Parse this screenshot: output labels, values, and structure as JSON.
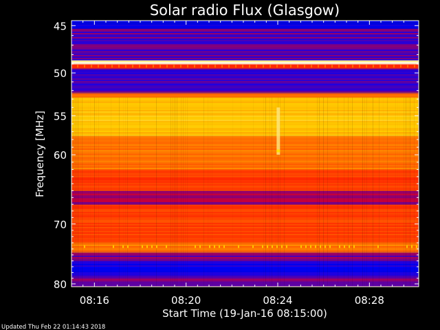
{
  "chart_data": {
    "type": "heatmap",
    "title": "Solar radio Flux (Glasgow)",
    "xlabel": "Start Time (19-Jan-16 08:15:00)",
    "ylabel": "Frequency [MHz]",
    "x_ticks": [
      "08:16",
      "08:20",
      "08:24",
      "08:28"
    ],
    "x_tick_minutes": [
      16,
      20,
      24,
      28
    ],
    "xlim_minutes": [
      15.0,
      30.15
    ],
    "y_ticks": [
      45,
      50,
      55,
      60,
      70,
      80
    ],
    "ylim": [
      44.5,
      80.5
    ],
    "y_scale": "log",
    "colormap": [
      "#00008b",
      "#0000ff",
      "#ff0000",
      "#ff6a00",
      "#ffd000",
      "#ffffff"
    ],
    "bands": [
      {
        "f0": 44.5,
        "f1": 45.3,
        "level": 0.15
      },
      {
        "f0": 45.3,
        "f1": 48.6,
        "level": 0.27
      },
      {
        "f0": 48.6,
        "f1": 49.0,
        "level": 0.95
      },
      {
        "f0": 49.0,
        "f1": 49.5,
        "level": 0.45
      },
      {
        "f0": 49.5,
        "f1": 52.2,
        "level": 0.25
      },
      {
        "f0": 52.2,
        "f1": 52.8,
        "level": 0.6
      },
      {
        "f0": 52.8,
        "f1": 57.5,
        "level": 0.78
      },
      {
        "f0": 57.5,
        "f1": 62.0,
        "level": 0.62
      },
      {
        "f0": 62.0,
        "f1": 65.0,
        "level": 0.5
      },
      {
        "f0": 65.0,
        "f1": 67.0,
        "level": 0.32
      },
      {
        "f0": 67.0,
        "f1": 73.0,
        "level": 0.52
      },
      {
        "f0": 73.0,
        "f1": 74.5,
        "level": 0.62
      },
      {
        "f0": 74.5,
        "f1": 76.0,
        "level": 0.3
      },
      {
        "f0": 76.0,
        "f1": 78.5,
        "level": 0.2
      },
      {
        "f0": 78.5,
        "f1": 80.5,
        "level": 0.3
      }
    ],
    "burst": {
      "t0": 23.95,
      "t1": 24.1,
      "f0": 54.0,
      "f1": 60.0,
      "level": 0.9
    },
    "updated_text": "Updated Thu Feb 22 01:14:43 2018"
  }
}
